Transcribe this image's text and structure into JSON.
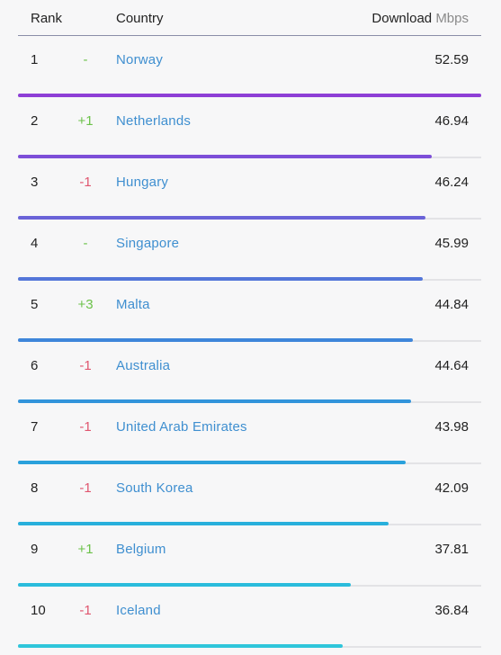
{
  "header": {
    "rank_label": "Rank",
    "country_label": "Country",
    "download_label": "Download",
    "unit_label": "Mbps"
  },
  "max_value": 52.59,
  "rows": [
    {
      "rank": "1",
      "change": "-",
      "change_type": "same",
      "country": "Norway",
      "speed": "52.59",
      "value": 52.59,
      "color": "#8e3fd6"
    },
    {
      "rank": "2",
      "change": "+1",
      "change_type": "up",
      "country": "Netherlands",
      "speed": "46.94",
      "value": 46.94,
      "color": "#7d4fd8"
    },
    {
      "rank": "3",
      "change": "-1",
      "change_type": "down",
      "country": "Hungary",
      "speed": "46.24",
      "value": 46.24,
      "color": "#6a63d8"
    },
    {
      "rank": "4",
      "change": "-",
      "change_type": "same",
      "country": "Singapore",
      "speed": "45.99",
      "value": 45.99,
      "color": "#5476d9"
    },
    {
      "rank": "5",
      "change": "+3",
      "change_type": "up",
      "country": "Malta",
      "speed": "44.84",
      "value": 44.84,
      "color": "#3f86da"
    },
    {
      "rank": "6",
      "change": "-1",
      "change_type": "down",
      "country": "Australia",
      "speed": "44.64",
      "value": 44.64,
      "color": "#3294db"
    },
    {
      "rank": "7",
      "change": "-1",
      "change_type": "down",
      "country": "United Arab Emirates",
      "speed": "43.98",
      "value": 43.98,
      "color": "#2aa1dc"
    },
    {
      "rank": "8",
      "change": "-1",
      "change_type": "down",
      "country": "South Korea",
      "speed": "42.09",
      "value": 42.09,
      "color": "#28b0dc"
    },
    {
      "rank": "9",
      "change": "+1",
      "change_type": "up",
      "country": "Belgium",
      "speed": "37.81",
      "value": 37.81,
      "color": "#2abcdc"
    },
    {
      "rank": "10",
      "change": "-1",
      "change_type": "down",
      "country": "Iceland",
      "speed": "36.84",
      "value": 36.84,
      "color": "#2fc6db"
    }
  ]
}
